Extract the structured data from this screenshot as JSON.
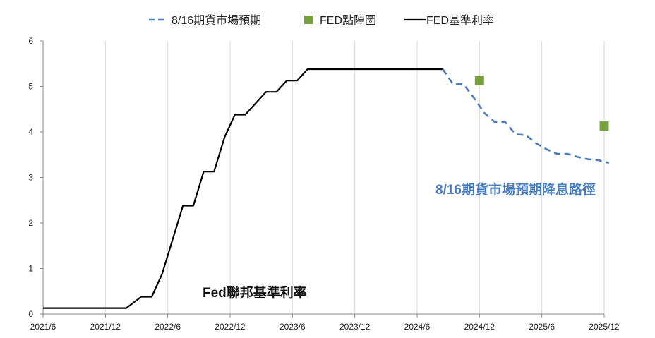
{
  "chart_data": {
    "type": "line",
    "title": "",
    "xlabel": "",
    "ylabel": "",
    "ylim": [
      0,
      6
    ],
    "yticks": [
      "0",
      "1",
      "2",
      "3",
      "4",
      "5",
      "6"
    ],
    "xticks": [
      "2021/6",
      "2021/12",
      "2022/6",
      "2022/12",
      "2023/6",
      "2023/12",
      "2024/6",
      "2024/12",
      "2025/6",
      "2025/12"
    ],
    "grid": "vertical",
    "legend_position": "top",
    "legend": [
      {
        "name": "8/16期貨市場預期",
        "style": "dashed",
        "color": "#4a7dbd"
      },
      {
        "name": "FED點陣圖",
        "style": "square",
        "color": "#77a03f"
      },
      {
        "name": "FED基準利率",
        "style": "solid",
        "color": "#000000"
      }
    ],
    "series": [
      {
        "name": "FED基準利率",
        "color": "#000000",
        "points": [
          [
            "2021-06-01",
            0.13
          ],
          [
            "2022-02-01",
            0.13
          ],
          [
            "2022-03-15",
            0.38
          ],
          [
            "2022-04-15",
            0.38
          ],
          [
            "2022-05-15",
            0.88
          ],
          [
            "2022-06-15",
            1.63
          ],
          [
            "2022-07-15",
            2.38
          ],
          [
            "2022-08-15",
            2.38
          ],
          [
            "2022-09-15",
            3.13
          ],
          [
            "2022-10-15",
            3.13
          ],
          [
            "2022-11-15",
            3.88
          ],
          [
            "2022-12-15",
            4.38
          ],
          [
            "2023-01-15",
            4.38
          ],
          [
            "2023-02-15",
            4.63
          ],
          [
            "2023-03-15",
            4.88
          ],
          [
            "2023-04-15",
            4.88
          ],
          [
            "2023-05-15",
            5.13
          ],
          [
            "2023-06-15",
            5.13
          ],
          [
            "2023-07-15",
            5.38
          ],
          [
            "2024-08-15",
            5.38
          ]
        ]
      },
      {
        "name": "8/16期貨市場預期",
        "color": "#4a7dbd",
        "points": [
          [
            "2024-08-15",
            5.38
          ],
          [
            "2024-09-15",
            5.05
          ],
          [
            "2024-10-15",
            5.05
          ],
          [
            "2024-11-15",
            4.75
          ],
          [
            "2024-12-15",
            4.42
          ],
          [
            "2025-01-15",
            4.22
          ],
          [
            "2025-02-15",
            4.22
          ],
          [
            "2025-03-15",
            3.95
          ],
          [
            "2025-04-15",
            3.93
          ],
          [
            "2025-05-15",
            3.75
          ],
          [
            "2025-06-15",
            3.62
          ],
          [
            "2025-07-15",
            3.52
          ],
          [
            "2025-08-15",
            3.52
          ],
          [
            "2025-09-15",
            3.45
          ],
          [
            "2025-10-15",
            3.4
          ],
          [
            "2025-11-15",
            3.38
          ],
          [
            "2025-12-15",
            3.32
          ]
        ]
      },
      {
        "name": "FED點陣圖",
        "color": "#77a03f",
        "points": [
          [
            "2024-12-01",
            5.13
          ],
          [
            "2025-12-01",
            4.13
          ]
        ]
      }
    ],
    "annotations": [
      {
        "text": "8/16期貨市場預期降息路徑",
        "color": "#4a7dbd"
      },
      {
        "text": "Fed聯邦基準利率",
        "color": "#111111"
      }
    ]
  }
}
